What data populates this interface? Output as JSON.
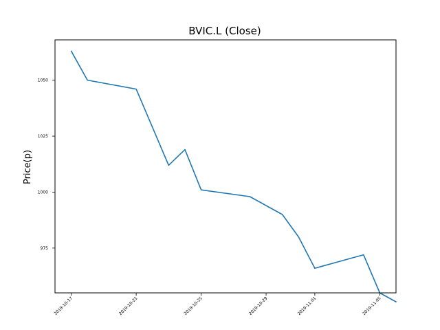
{
  "chart_data": {
    "type": "line",
    "title": "BVIC.L (Close)",
    "xlabel": "",
    "ylabel": "Price(p)",
    "xlim": [
      "2019-10-16",
      "2019-11-06"
    ],
    "ylim": [
      955,
      1068
    ],
    "x_ticks": [
      "2019-10-17",
      "2019-10-21",
      "2019-10-25",
      "2019-10-29",
      "2019-11-01",
      "2019-11-05"
    ],
    "y_ticks": [
      975,
      1000,
      1025,
      1050
    ],
    "grid": false,
    "line_color": "#1f77b4",
    "series": [
      {
        "x": [
          "2019-10-17",
          "2019-10-18",
          "2019-10-21",
          "2019-10-23",
          "2019-10-24",
          "2019-10-25",
          "2019-10-28",
          "2019-10-30",
          "2019-10-31",
          "2019-11-01",
          "2019-11-04",
          "2019-11-05",
          "2019-11-06"
        ],
        "values": [
          1063,
          1050,
          1046,
          1012,
          1019,
          1001,
          998,
          990,
          980,
          966,
          972,
          955,
          951
        ]
      }
    ]
  }
}
